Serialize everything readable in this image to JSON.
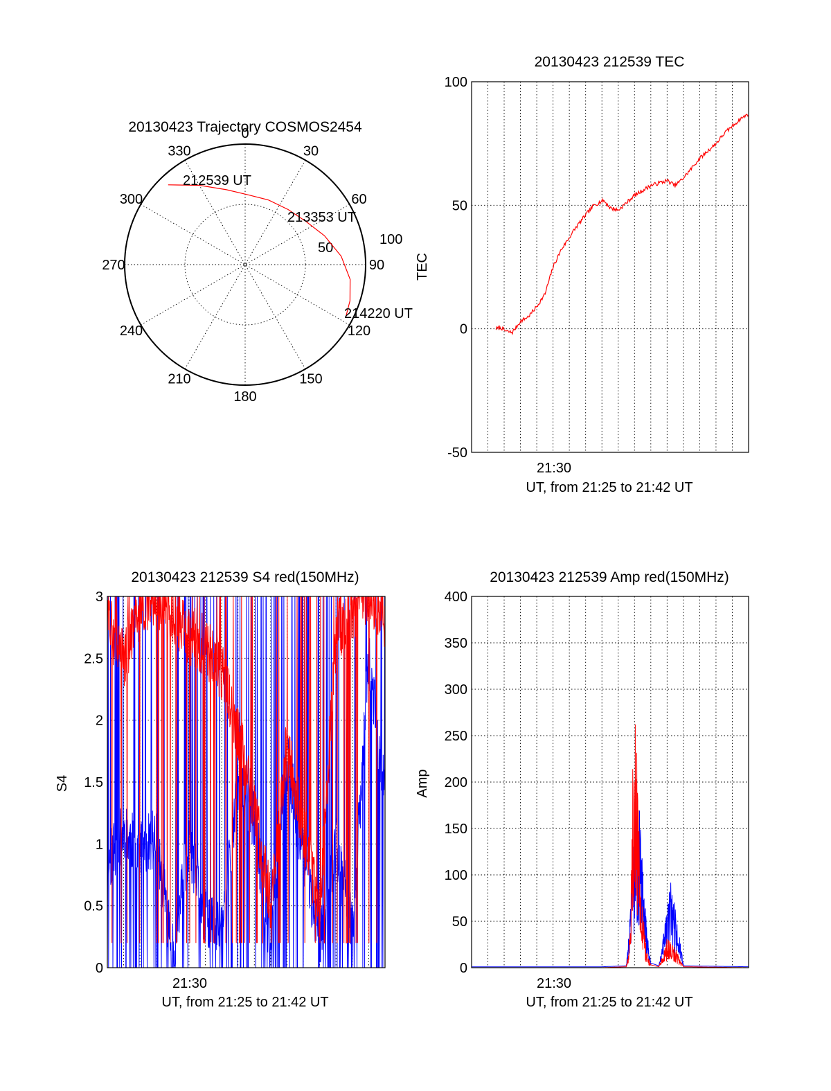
{
  "colors": {
    "red": "#ff0000",
    "blue": "#0000ff",
    "axis": "#000000",
    "grid": "#000000"
  },
  "chart_data": [
    {
      "type": "polar",
      "title": "20130423 Trajectory COSMOS2454",
      "azimuth_ticks": [
        "0",
        "30",
        "60",
        "90",
        "120",
        "150",
        "180",
        "210",
        "240",
        "270",
        "300",
        "330"
      ],
      "radial_ticks": [
        "50",
        "100"
      ],
      "grid": true,
      "track": {
        "color": "red",
        "points": [
          {
            "az": 316,
            "zen": 92
          },
          {
            "az": 330,
            "zen": 76
          },
          {
            "az": 346,
            "zen": 64
          },
          {
            "az": 2,
            "zen": 58
          },
          {
            "az": 20,
            "zen": 57
          },
          {
            "az": 38,
            "zen": 58
          },
          {
            "az": 55,
            "zen": 62
          },
          {
            "az": 70,
            "zen": 70
          },
          {
            "az": 85,
            "zen": 80
          },
          {
            "az": 98,
            "zen": 88
          },
          {
            "az": 109,
            "zen": 92
          },
          {
            "az": 117,
            "zen": 94
          }
        ]
      },
      "annotations": [
        "212539 UT",
        "213353 UT",
        "214220 UT"
      ]
    },
    {
      "type": "line",
      "title": "20130423 212539 TEC",
      "ylabel": "TEC",
      "xlabel": "UT, from 21:25 to 21:42 UT",
      "x_tick_labels": [
        "21:30"
      ],
      "y_ticks": [
        "-50",
        "0",
        "50",
        "100"
      ],
      "xlim": [
        21.4167,
        21.7
      ],
      "ylim": [
        -50,
        100
      ],
      "grid": true,
      "series": [
        {
          "color": "red",
          "x": [
            21.4417,
            21.4467,
            21.4517,
            21.4583,
            21.4667,
            21.475,
            21.4833,
            21.4917,
            21.5,
            21.5083,
            21.5167,
            21.5233,
            21.5333,
            21.5417,
            21.5517,
            21.5583,
            21.5667,
            21.575,
            21.5833,
            21.5917,
            21.6,
            21.6083,
            21.6167,
            21.625,
            21.6333,
            21.6417,
            21.65,
            21.6583,
            21.6667,
            21.675,
            21.6833,
            21.6917,
            21.7
          ],
          "y": [
            0,
            0.5,
            -1,
            -1.5,
            3,
            5,
            9,
            14,
            25,
            32,
            37,
            41,
            46,
            50,
            52,
            49,
            48,
            51,
            54,
            56,
            58,
            59,
            60,
            58,
            61,
            65,
            69,
            72,
            75,
            79,
            82,
            85,
            87
          ]
        }
      ]
    },
    {
      "type": "line",
      "title": "20130423 212539 S4 red(150MHz)",
      "ylabel": "S4",
      "xlabel": "UT, from 21:25 to 21:42 UT",
      "x_tick_labels": [
        "21:30"
      ],
      "y_ticks": [
        "0",
        "0.5",
        "1",
        "1.5",
        "2",
        "2.5",
        "3"
      ],
      "xlim": [
        21.4167,
        21.7
      ],
      "ylim": [
        0,
        3
      ],
      "grid": true,
      "series": [
        {
          "color": "red",
          "x": [
            21.4167,
            21.4333,
            21.45,
            21.4667,
            21.4833,
            21.5,
            21.5167,
            21.5333,
            21.55,
            21.5667,
            21.5833,
            21.6,
            21.6167,
            21.6333,
            21.65,
            21.6667,
            21.6833,
            21.7
          ],
          "y": [
            2.8,
            2.5,
            2.9,
            3.0,
            2.8,
            2.7,
            2.6,
            2.4,
            1.9,
            1.3,
            0.5,
            1.8,
            1.1,
            0.45,
            2.7,
            2.9,
            3.0,
            2.8
          ]
        },
        {
          "color": "blue",
          "x": [
            21.4167,
            21.4333,
            21.45,
            21.4667,
            21.4833,
            21.5,
            21.5167,
            21.5333,
            21.55,
            21.5667,
            21.5833,
            21.6,
            21.6167,
            21.6333,
            21.65,
            21.6667,
            21.6833,
            21.7
          ],
          "y": [
            0.85,
            1.1,
            0.95,
            1.05,
            0.1,
            1.0,
            0.4,
            0.3,
            1.5,
            1.2,
            0.15,
            1.7,
            0.9,
            0.25,
            1.0,
            0.3,
            2.5,
            1.4
          ]
        }
      ]
    },
    {
      "type": "line",
      "title": "20130423 212539 Amp red(150MHz)",
      "ylabel": "Amp",
      "xlabel": "UT, from 21:25 to 21:42 UT",
      "x_tick_labels": [
        "21:30"
      ],
      "y_ticks": [
        "0",
        "50",
        "100",
        "150",
        "200",
        "250",
        "300",
        "350",
        "400"
      ],
      "xlim": [
        21.4167,
        21.7
      ],
      "ylim": [
        0,
        400
      ],
      "grid": true,
      "series": [
        {
          "color": "blue",
          "x": [
            21.4167,
            21.5,
            21.55,
            21.575,
            21.5792,
            21.5833,
            21.5875,
            21.5917,
            21.5958,
            21.6,
            21.6083,
            21.6125,
            21.6167,
            21.6208,
            21.625,
            21.6292,
            21.6333,
            21.7
          ],
          "y": [
            1,
            1,
            1,
            2,
            60,
            150,
            180,
            100,
            40,
            5,
            2,
            30,
            60,
            90,
            60,
            35,
            2,
            1
          ]
        },
        {
          "color": "red",
          "x": [
            21.4167,
            21.5,
            21.55,
            21.575,
            21.5792,
            21.5813,
            21.5833,
            21.5875,
            21.5917,
            21.5958,
            21.6,
            21.6083,
            21.6125,
            21.6167,
            21.6208,
            21.625,
            21.6292,
            21.6333,
            21.7
          ],
          "y": [
            0,
            0,
            0,
            1,
            40,
            190,
            310,
            150,
            60,
            15,
            3,
            1,
            15,
            30,
            25,
            20,
            10,
            1,
            0
          ]
        }
      ]
    }
  ]
}
